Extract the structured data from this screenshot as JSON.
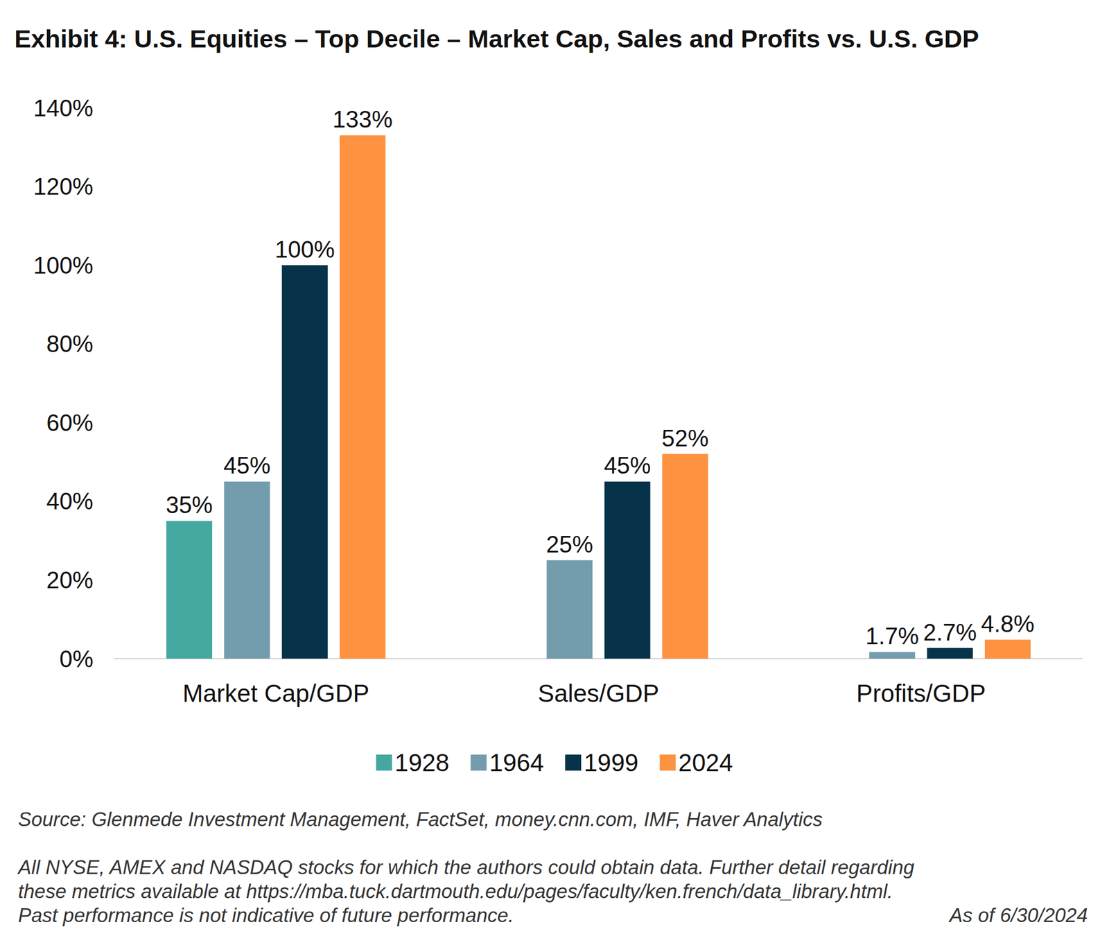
{
  "chart_data": {
    "type": "bar",
    "title": "Exhibit 4: U.S. Equities – Top Decile – Market Cap, Sales and Profits vs. U.S. GDP",
    "categories": [
      "Market Cap/GDP",
      "Sales/GDP",
      "Profits/GDP"
    ],
    "series": [
      {
        "name": "1928",
        "color": "#45a8a0",
        "values": [
          35,
          null,
          null
        ],
        "value_labels": [
          "35%",
          null,
          null
        ]
      },
      {
        "name": "1964",
        "color": "#739cad",
        "values": [
          45,
          25,
          1.7
        ],
        "value_labels": [
          "45%",
          "25%",
          "1.7%"
        ]
      },
      {
        "name": "1999",
        "color": "#06324a",
        "values": [
          100,
          45,
          2.7
        ],
        "value_labels": [
          "100%",
          "45%",
          "2.7%"
        ]
      },
      {
        "name": "2024",
        "color": "#fd9240",
        "values": [
          133,
          52,
          4.8
        ],
        "value_labels": [
          "133%",
          "52%",
          "4.8%"
        ]
      }
    ],
    "ylim": [
      0,
      140
    ],
    "yticks": [
      {
        "value": 0,
        "label": "0%"
      },
      {
        "value": 20,
        "label": "20%"
      },
      {
        "value": 40,
        "label": "40%"
      },
      {
        "value": 60,
        "label": "60%"
      },
      {
        "value": 80,
        "label": "80%"
      },
      {
        "value": 100,
        "label": "100%"
      },
      {
        "value": 120,
        "label": "120%"
      },
      {
        "value": 140,
        "label": "140%"
      }
    ],
    "grid": false,
    "legend": "bottom",
    "data_labels": true,
    "annotations": [
      "Source: Glenmede Investment Management, FactSet, money.cnn.com, IMF, Haver Analytics",
      "All NYSE, AMEX and NASDAQ stocks for which the authors could obtain data. Further detail regarding",
      "these metrics available at https://mba.tuck.dartmouth.edu/pages/faculty/ken.french/data_library.html.",
      "Past performance is not indicative of future performance.",
      "As of 6/30/2024"
    ]
  }
}
